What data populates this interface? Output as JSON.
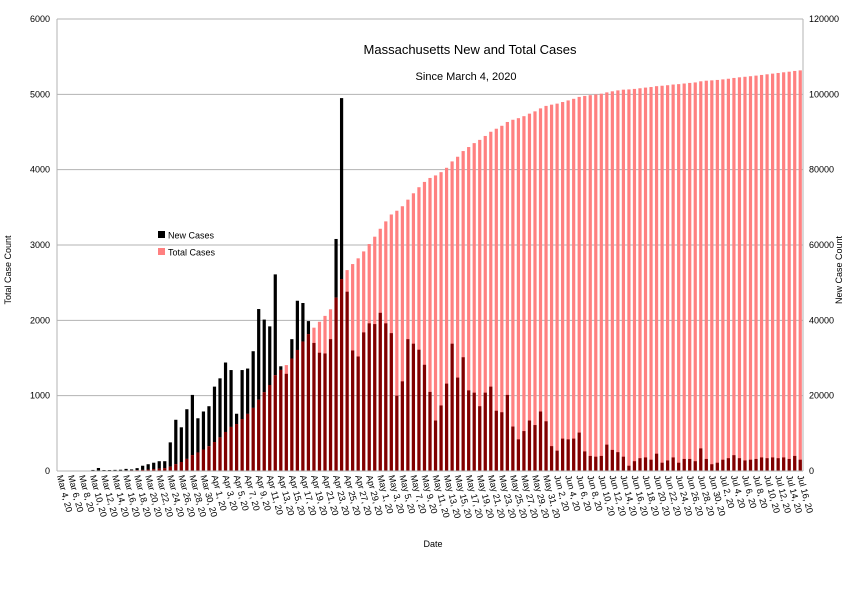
{
  "chart_data": {
    "type": "bar",
    "title": "Massachusetts New and Total Cases",
    "subtitle": "Since March 4, 2020",
    "xlabel": "Date",
    "ylabel_left": "Total Case Count",
    "ylabel_right": "New Case Count",
    "ylim_left": [
      0,
      6000
    ],
    "ylim_right": [
      0,
      120000
    ],
    "yticks_left": [
      "0",
      "1000",
      "2000",
      "3000",
      "4000",
      "5000",
      "6000"
    ],
    "yticks_right": [
      "0",
      "20000",
      "40000",
      "60000",
      "80000",
      "100000",
      "120000"
    ],
    "grid": true,
    "legend_position": "left-center",
    "colors": {
      "new": "#000000",
      "total": "#ff8080",
      "overlap": "#800000"
    },
    "categories": [
      "Mar 4, 20",
      "Mar 5, 20",
      "Mar 6, 20",
      "Mar 7, 20",
      "Mar 8, 20",
      "Mar 9, 20",
      "Mar 10, 20",
      "Mar 11, 20",
      "Mar 12, 20",
      "Mar 13, 20",
      "Mar 14, 20",
      "Mar 15, 20",
      "Mar 16, 20",
      "Mar 17, 20",
      "Mar 18, 20",
      "Mar 19, 20",
      "Mar 20, 20",
      "Mar 21, 20",
      "Mar 22, 20",
      "Mar 23, 20",
      "Mar 24, 20",
      "Mar 25, 20",
      "Mar 26, 20",
      "Mar 27, 20",
      "Mar 28, 20",
      "Mar 29, 20",
      "Mar 30, 20",
      "Mar 31, 20",
      "Apr 1, 20",
      "Apr 2, 20",
      "Apr 3, 20",
      "Apr 4, 20",
      "Apr 5, 20",
      "Apr 6, 20",
      "Apr 7, 20",
      "Apr 8, 20",
      "Apr 9, 20",
      "Apr 10, 20",
      "Apr 11, 20",
      "Apr 12, 20",
      "Apr 13, 20",
      "Apr 14, 20",
      "Apr 15, 20",
      "Apr 16, 20",
      "Apr 17, 20",
      "Apr 18, 20",
      "Apr 19, 20",
      "Apr 20, 20",
      "Apr 21, 20",
      "Apr 22, 20",
      "Apr 23, 20",
      "Apr 24, 20",
      "Apr 25, 20",
      "Apr 26, 20",
      "Apr 27, 20",
      "Apr 28, 20",
      "Apr 29, 20",
      "Apr 30, 20",
      "May 1, 20",
      "May 2, 20",
      "May 3, 20",
      "May 4, 20",
      "May 5, 20",
      "May 6, 20",
      "May 7, 20",
      "May 8, 20",
      "May 9, 20",
      "May 10, 20",
      "May 11, 20",
      "May 12, 20",
      "May 13, 20",
      "May 14, 20",
      "May 15, 20",
      "May 16, 20",
      "May 17, 20",
      "May 18, 20",
      "May 19, 20",
      "May 20, 20",
      "May 21, 20",
      "May 22, 20",
      "May 23, 20",
      "May 24, 20",
      "May 25, 20",
      "May 26, 20",
      "May 27, 20",
      "May 28, 20",
      "May 29, 20",
      "May 30, 20",
      "May 31, 20",
      "Jun 1, 20",
      "Jun 2, 20",
      "Jun 3, 20",
      "Jun 4, 20",
      "Jun 5, 20",
      "Jun 6, 20",
      "Jun 7, 20",
      "Jun 8, 20",
      "Jun 9, 20",
      "Jun 10, 20",
      "Jun 11, 20",
      "Jun 12, 20",
      "Jun 13, 20",
      "Jun 14, 20",
      "Jun 15, 20",
      "Jun 16, 20",
      "Jun 17, 20",
      "Jun 18, 20",
      "Jun 19, 20",
      "Jun 20, 20",
      "Jun 21, 20",
      "Jun 22, 20",
      "Jun 23, 20",
      "Jun 24, 20",
      "Jun 25, 20",
      "Jun 26, 20",
      "Jun 27, 20",
      "Jun 28, 20",
      "Jun 29, 20",
      "Jun 30, 20",
      "Jul 1, 20",
      "Jul 2, 20",
      "Jul 3, 20",
      "Jul 4, 20",
      "Jul 5, 20",
      "Jul 6, 20",
      "Jul 7, 20",
      "Jul 8, 20",
      "Jul 9, 20",
      "Jul 10, 20",
      "Jul 11, 20",
      "Jul 12, 20",
      "Jul 13, 20",
      "Jul 14, 20",
      "Jul 15, 20",
      "Jul 16, 20"
    ],
    "series": [
      {
        "name": "New Cases",
        "axis": "left",
        "values": [
          0,
          1,
          0,
          1,
          3,
          5,
          14,
          40,
          13,
          13,
          15,
          17,
          28,
          21,
          38,
          70,
          90,
          110,
          130,
          130,
          380,
          680,
          580,
          820,
          1010,
          700,
          790,
          860,
          1120,
          1230,
          1440,
          1340,
          760,
          1340,
          1360,
          1590,
          2150,
          2010,
          1920,
          2610,
          1390,
          1290,
          1750,
          2260,
          2230,
          1990,
          1700,
          1570,
          1560,
          1750,
          3080,
          4950,
          2380,
          1600,
          1520,
          1840,
          1960,
          1950,
          2100,
          1960,
          1830,
          1000,
          1190,
          1750,
          1690,
          1610,
          1410,
          1050,
          670,
          870,
          1160,
          1690,
          1240,
          1510,
          1070,
          1040,
          860,
          1040,
          1120,
          800,
          780,
          1010,
          590,
          420,
          530,
          670,
          610,
          790,
          660,
          330,
          270,
          430,
          420,
          430,
          510,
          260,
          200,
          190,
          200,
          350,
          280,
          250,
          190,
          70,
          130,
          170,
          180,
          150,
          230,
          110,
          140,
          180,
          110,
          160,
          160,
          130,
          300,
          160,
          90,
          110,
          150,
          170,
          210,
          170,
          140,
          150,
          160,
          180,
          170,
          180,
          170,
          180,
          160,
          200,
          150
        ]
      },
      {
        "name": "Total Cases",
        "axis": "right",
        "values": [
          1,
          2,
          2,
          3,
          6,
          11,
          25,
          65,
          80,
          95,
          110,
          125,
          150,
          170,
          210,
          290,
          380,
          490,
          620,
          750,
          1130,
          1810,
          2390,
          3210,
          4220,
          4920,
          5710,
          6570,
          7690,
          8920,
          10360,
          11700,
          12460,
          13800,
          15160,
          16750,
          18900,
          20910,
          22830,
          25440,
          26830,
          28120,
          29870,
          32130,
          34360,
          36350,
          38050,
          39620,
          41180,
          42930,
          46010,
          50960,
          53340,
          54940,
          56460,
          58300,
          60260,
          62210,
          64310,
          66270,
          68100,
          69100,
          70290,
          72040,
          73730,
          75340,
          76750,
          77800,
          78470,
          79340,
          80500,
          82190,
          83430,
          84940,
          86010,
          87050,
          87910,
          88950,
          90070,
          90870,
          91650,
          92660,
          93250,
          93670,
          94200,
          94870,
          95480,
          96270,
          96930,
          97260,
          97530,
          97960,
          98380,
          98810,
          99320,
          99580,
          99780,
          99970,
          100170,
          100520,
          100800,
          101050,
          101240,
          101310,
          101440,
          101610,
          101790,
          101940,
          102170,
          102280,
          102420,
          102600,
          102710,
          102870,
          103030,
          103160,
          103460,
          103620,
          103710,
          103820,
          103970,
          104140,
          104350,
          104520,
          104660,
          104810,
          104970,
          105150,
          105320,
          105500,
          105670,
          105850,
          106010,
          106210,
          106360
        ]
      }
    ]
  }
}
